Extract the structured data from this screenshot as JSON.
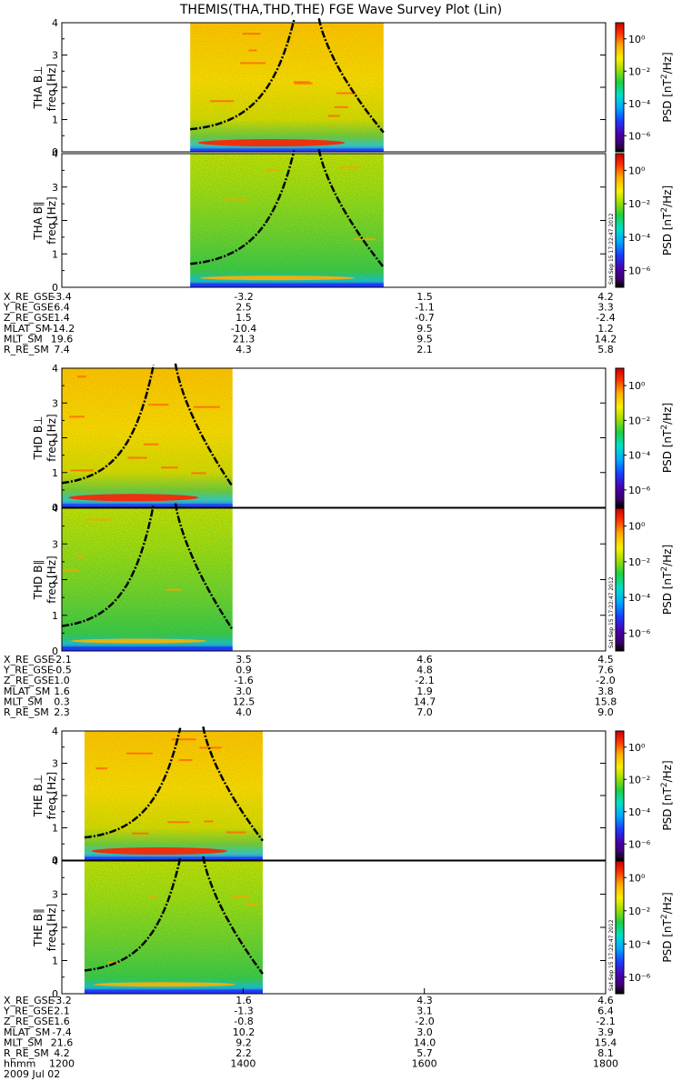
{
  "title": "THEMIS(THA,THD,THE) FGE Wave Survey Plot (Lin)",
  "colorbar": {
    "label": "PSD [nT²/Hz]",
    "label_main": "PSD [nT",
    "label_sup": "2",
    "label_end": "/Hz]",
    "tick_labels": [
      "10⁰",
      "10⁻²",
      "10⁻⁴",
      "10⁻⁶"
    ],
    "tick_values": [
      0,
      -2,
      -4,
      -6
    ],
    "range_log10": [
      -7,
      1
    ]
  },
  "timestamp": "Sat Sep 15 17:22:47 2012",
  "x_axis": {
    "row_label": "hhmm",
    "date": "2009 Jul 02",
    "tick_labels": [
      "1200",
      "1400",
      "1600",
      "1800"
    ]
  },
  "chart_data": [
    {
      "type": "heatmap",
      "probe": "THA",
      "component": "perp",
      "panel_label": "THA B⊥",
      "ylabel": "freq [Hz]",
      "ylim": [
        0,
        4
      ],
      "yticks": [
        0,
        1,
        2,
        3,
        4
      ],
      "data_time_range_hhmm": [
        "1325",
        "1533"
      ],
      "gyro_curves": true
    },
    {
      "type": "heatmap",
      "probe": "THA",
      "component": "par",
      "panel_label": "THA B∥",
      "ylabel": "freq [Hz]",
      "ylim": [
        0,
        4
      ],
      "yticks": [
        0,
        1,
        2,
        3,
        4
      ],
      "data_time_range_hhmm": [
        "1325",
        "1533"
      ],
      "gyro_curves": true
    },
    {
      "type": "heatmap",
      "probe": "THD",
      "component": "perp",
      "panel_label": "THD B⊥",
      "ylabel": "freq [Hz]",
      "ylim": [
        0,
        4
      ],
      "yticks": [
        0,
        1,
        2,
        3,
        4
      ],
      "data_time_range_hhmm": [
        "1200",
        "1353"
      ],
      "gyro_curves": true
    },
    {
      "type": "heatmap",
      "probe": "THD",
      "component": "par",
      "panel_label": "THD B∥",
      "ylabel": "freq [Hz]",
      "ylim": [
        0,
        4
      ],
      "yticks": [
        0,
        1,
        2,
        3,
        4
      ],
      "data_time_range_hhmm": [
        "1200",
        "1353"
      ],
      "gyro_curves": true
    },
    {
      "type": "heatmap",
      "probe": "THE",
      "component": "perp",
      "panel_label": "THE B⊥",
      "ylabel": "freq [Hz]",
      "ylim": [
        0,
        4
      ],
      "yticks": [
        0,
        1,
        2,
        3,
        4
      ],
      "data_time_range_hhmm": [
        "1215",
        "1413"
      ],
      "gyro_curves": true
    },
    {
      "type": "heatmap",
      "probe": "THE",
      "component": "par",
      "panel_label": "THE B∥",
      "ylabel": "freq [Hz]",
      "ylim": [
        0,
        4
      ],
      "yticks": [
        0,
        1,
        2,
        3,
        4
      ],
      "data_time_range_hhmm": [
        "1215",
        "1413"
      ],
      "gyro_curves": true
    }
  ],
  "ephemeris": [
    {
      "probe": "THA",
      "rows": [
        {
          "label": "X_RE_GSE",
          "values": [
            "-3.4",
            "-3.2",
            "1.5",
            "4.2"
          ]
        },
        {
          "label": "Y_RE_GSE",
          "values": [
            "6.4",
            "2.5",
            "-1.1",
            "3.3"
          ]
        },
        {
          "label": "Z_RE_GSE",
          "values": [
            "1.4",
            "1.5",
            "-0.7",
            "-2.4"
          ]
        },
        {
          "label": "MLAT_SM",
          "values": [
            "-14.2",
            "-10.4",
            "9.5",
            "1.2"
          ]
        },
        {
          "label": "MLT_SM",
          "values": [
            "19.6",
            "21.3",
            "9.5",
            "14.2"
          ]
        },
        {
          "label": "R_RE_SM",
          "values": [
            "7.4",
            "4.3",
            "2.1",
            "5.8"
          ]
        }
      ]
    },
    {
      "probe": "THD",
      "rows": [
        {
          "label": "X_RE_GSE",
          "values": [
            "-2.1",
            "3.5",
            "4.6",
            "4.5"
          ]
        },
        {
          "label": "Y_RE_GSE",
          "values": [
            "-0.5",
            "0.9",
            "4.8",
            "7.6"
          ]
        },
        {
          "label": "Z_RE_GSE",
          "values": [
            "1.0",
            "-1.6",
            "-2.1",
            "-2.0"
          ]
        },
        {
          "label": "MLAT_SM",
          "values": [
            "1.6",
            "3.0",
            "1.9",
            "3.8"
          ]
        },
        {
          "label": "MLT_SM",
          "values": [
            "0.3",
            "12.5",
            "14.7",
            "15.8"
          ]
        },
        {
          "label": "R_RE_SM",
          "values": [
            "2.3",
            "4.0",
            "7.0",
            "9.0"
          ]
        }
      ]
    },
    {
      "probe": "THE",
      "rows": [
        {
          "label": "X_RE_GSE",
          "values": [
            "-3.2",
            "1.6",
            "4.3",
            "4.6"
          ]
        },
        {
          "label": "Y_RE_GSE",
          "values": [
            "2.1",
            "-1.3",
            "3.1",
            "6.4"
          ]
        },
        {
          "label": "Z_RE_GSE",
          "values": [
            "1.6",
            "-0.8",
            "-2.0",
            "-2.1"
          ]
        },
        {
          "label": "MLAT_SM",
          "values": [
            "-7.4",
            "10.2",
            "3.0",
            "3.9"
          ]
        },
        {
          "label": "MLT_SM",
          "values": [
            "21.6",
            "9.2",
            "14.0",
            "15.4"
          ]
        },
        {
          "label": "R_RE_SM",
          "values": [
            "4.2",
            "2.2",
            "5.7",
            "8.1"
          ]
        }
      ]
    }
  ]
}
